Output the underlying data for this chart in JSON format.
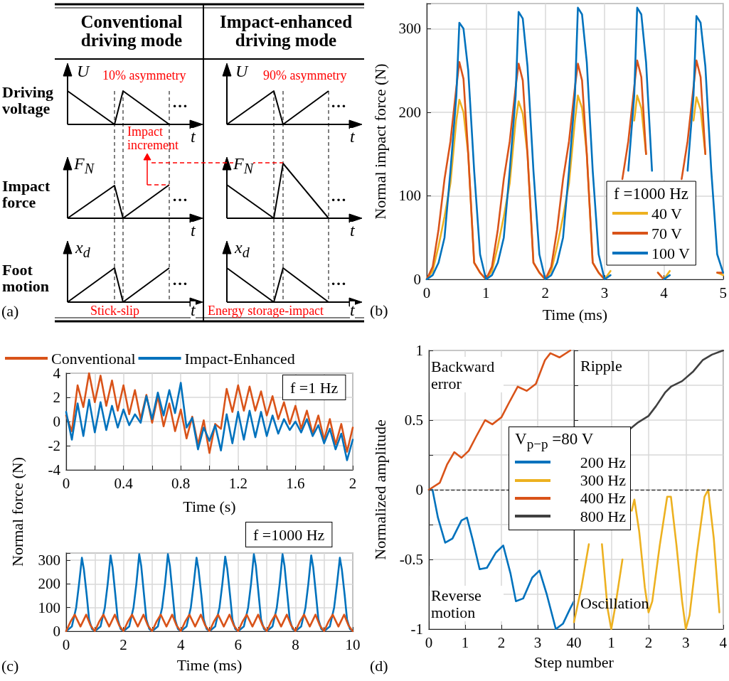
{
  "chart_data": [
    {
      "type": "other",
      "annotations": [
        "Conventional driving mode",
        "Impact-enhanced driving mode",
        "Driving voltage",
        "Impact force",
        "Foot motion",
        "U",
        "U",
        "F$_{N}$",
        "F$_{N}$",
        "x$_{d}$",
        "x$_{d}$",
        "t",
        "t",
        "t",
        "t",
        "t",
        "t",
        "10% asymmetry",
        "90% asymmetry",
        "Impact increment",
        "Stick-slip",
        "Energy storage-impact",
        "…",
        "…",
        "…",
        "…",
        "…",
        "…",
        "(a)"
      ]
    },
    {
      "type": "line",
      "xlabel": "Time (ms)",
      "ylabel": "Normal impact force (N)",
      "legend_title": "f =1000 Hz",
      "legend": "bottom right",
      "grid": true,
      "xlim": [
        0,
        5
      ],
      "xticks": [
        0,
        1,
        2,
        3,
        4,
        5
      ],
      "ylim": [
        0,
        330
      ],
      "yticks": [
        0,
        100,
        200,
        300
      ],
      "annotations": [
        "(b)"
      ],
      "x": [
        0,
        0.1,
        0.2,
        0.3,
        0.4,
        0.5,
        0.55,
        0.62,
        0.7,
        0.8,
        0.9,
        1,
        1.1,
        1.2,
        1.3,
        1.4,
        1.5,
        1.55,
        1.62,
        1.7,
        1.8,
        1.9,
        2,
        2.1,
        2.2,
        2.3,
        2.4,
        2.5,
        2.55,
        2.62,
        2.7,
        2.8,
        2.9,
        3,
        3.1,
        3.2,
        3.3,
        3.4,
        3.5,
        3.55,
        3.62,
        3.7,
        3.8,
        3.9,
        4,
        4.1,
        4.2,
        4.3,
        4.4,
        4.5,
        4.55,
        4.62,
        4.7,
        4.8,
        4.9,
        5
      ],
      "series": [
        {
          "name": "40 V",
          "color": "#edb120",
          "values": [
            0,
            10,
            40,
            75,
            115,
            190,
            215,
            200,
            150,
            20,
            8,
            0,
            10,
            40,
            75,
            115,
            190,
            213,
            198,
            150,
            20,
            8,
            0,
            10,
            40,
            75,
            115,
            190,
            220,
            205,
            150,
            20,
            8,
            0,
            10,
            null,
            null,
            null,
            190,
            220,
            205,
            150,
            null,
            8,
            0,
            10,
            null,
            null,
            null,
            190,
            218,
            203,
            150,
            null,
            8,
            5
          ]
        },
        {
          "name": "70 V",
          "color": "#d95319",
          "values": [
            0,
            15,
            60,
            120,
            165,
            230,
            260,
            240,
            150,
            20,
            8,
            0,
            15,
            60,
            120,
            165,
            230,
            258,
            238,
            150,
            20,
            8,
            0,
            15,
            60,
            120,
            165,
            230,
            258,
            238,
            150,
            20,
            8,
            0,
            null,
            null,
            120,
            165,
            230,
            262,
            242,
            150,
            null,
            8,
            0,
            null,
            null,
            120,
            165,
            230,
            262,
            242,
            150,
            null,
            8,
            8
          ]
        },
        {
          "name": "100 V",
          "color": "#0072bd",
          "values": [
            0,
            5,
            20,
            50,
            130,
            220,
            307,
            300,
            250,
            130,
            30,
            0,
            5,
            20,
            50,
            130,
            220,
            320,
            312,
            255,
            130,
            30,
            0,
            5,
            20,
            50,
            130,
            220,
            325,
            317,
            260,
            130,
            30,
            0,
            5,
            null,
            null,
            130,
            220,
            325,
            317,
            260,
            130,
            null,
            0,
            5,
            null,
            null,
            130,
            220,
            315,
            307,
            255,
            130,
            30,
            8
          ]
        }
      ]
    },
    {
      "type": "line",
      "xlabel": "Time (s)",
      "ylabel": "Normal force (N)",
      "legend": "top",
      "grid": true,
      "xlim": [
        0,
        2
      ],
      "xticks": [
        0,
        {
          "value": 0.2,
          "label": null
        },
        0.4,
        {
          "value": 0.6,
          "label": null
        },
        0.8,
        {
          "value": 1,
          "label": null
        },
        1.2,
        {
          "value": 1.4,
          "label": null
        },
        1.6,
        {
          "value": 1.8,
          "label": null
        },
        2
      ],
      "ylim": [
        -4,
        4
      ],
      "yticks": [
        -4,
        -2,
        0,
        2,
        4
      ],
      "annotations": [
        "f =1 Hz"
      ],
      "x": [
        0,
        0.04,
        0.08,
        0.12,
        0.16,
        0.2,
        0.24,
        0.28,
        0.32,
        0.36,
        0.4,
        0.44,
        0.48,
        0.52,
        0.56,
        0.6,
        0.64,
        0.68,
        0.72,
        0.76,
        0.8,
        0.84,
        0.88,
        0.92,
        0.96,
        1,
        1.04,
        1.08,
        1.12,
        1.16,
        1.2,
        1.24,
        1.28,
        1.32,
        1.36,
        1.4,
        1.44,
        1.48,
        1.52,
        1.56,
        1.6,
        1.64,
        1.68,
        1.72,
        1.76,
        1.8,
        1.84,
        1.88,
        1.92,
        1.96,
        2
      ],
      "series": [
        {
          "name": "Conventional",
          "color": "#d95319",
          "values": [
            0.5,
            -0.8,
            3.0,
            1.2,
            4.0,
            1.6,
            3.8,
            1.3,
            3.4,
            0.9,
            3.0,
            0.6,
            2.6,
            0.2,
            2.2,
            -0.1,
            2.1,
            -0.4,
            1.5,
            -0.8,
            1.0,
            -1.4,
            0.4,
            -1.9,
            0.1,
            -2.6,
            -0.2,
            -0.6,
            2.7,
            0.8,
            3.0,
            0.9,
            2.9,
            0.9,
            2.5,
            0.5,
            2.1,
            0.2,
            1.6,
            -0.2,
            1.3,
            -0.6,
            0.9,
            -1.0,
            0.5,
            -1.5,
            0.2,
            -1.9,
            -0.2,
            -2.5,
            -0.5
          ]
        },
        {
          "name": "Impact-Enhanced",
          "color": "#0072bd",
          "values": [
            0.8,
            -1.5,
            1.5,
            -1.2,
            1.8,
            -0.9,
            1.6,
            -0.7,
            1.3,
            -0.5,
            1.0,
            -0.3,
            0.6,
            -0.1,
            2.1,
            0.2,
            2.4,
            0.5,
            2.6,
            0.7,
            3.2,
            -0.5,
            0.3,
            -2.3,
            -0.5,
            -1.6,
            -0.3,
            -2.4,
            0.6,
            -1.8,
            0.8,
            -1.5,
            0.9,
            -1.3,
            0.8,
            -1.2,
            0.5,
            -1.0,
            0.2,
            -0.7,
            0.0,
            -0.9,
            0.2,
            -1.2,
            -0.3,
            -1.8,
            -0.6,
            -2.3,
            -1.0,
            -3.2,
            -1.5
          ]
        }
      ]
    },
    {
      "type": "line",
      "xlabel": "Time (ms)",
      "grid": true,
      "xlim": [
        0,
        10
      ],
      "xticks": [
        0,
        {
          "value": 1,
          "label": null
        },
        2,
        {
          "value": 3,
          "label": null
        },
        4,
        {
          "value": 5,
          "label": null
        },
        6,
        {
          "value": 7,
          "label": null
        },
        8,
        {
          "value": 9,
          "label": null
        },
        10
      ],
      "ylim": [
        0,
        330
      ],
      "yticks": [
        0,
        100,
        200,
        300
      ],
      "annotations": [
        "f =1000 Hz",
        "(c)"
      ],
      "series": [
        {
          "color": "#0072bd",
          "x": [
            0,
            0.2,
            0.35,
            0.45,
            0.55,
            0.62,
            0.72,
            0.8,
            0.9,
            1,
            1.2,
            1.35,
            1.45,
            1.55,
            1.62,
            1.72,
            1.8,
            1.9,
            2,
            2.2,
            2.35,
            2.45,
            2.55,
            2.62,
            2.72,
            2.8,
            2.9,
            3,
            3.2,
            3.35,
            3.45,
            3.55,
            3.62,
            3.72,
            3.8,
            3.9,
            4,
            4.2,
            4.35,
            4.45,
            4.55,
            4.62,
            4.72,
            4.8,
            4.9,
            5,
            5.2,
            5.35,
            5.45,
            5.55,
            5.62,
            5.72,
            5.8,
            5.9,
            6,
            6.2,
            6.35,
            6.45,
            6.55,
            6.62,
            6.72,
            6.8,
            6.9,
            7,
            7.2,
            7.35,
            7.45,
            7.55,
            7.62,
            7.72,
            7.8,
            7.9,
            8,
            8.2,
            8.35,
            8.45,
            8.55,
            8.62,
            8.72,
            8.8,
            8.9,
            9,
            9.2,
            9.35,
            9.45,
            9.55,
            9.62,
            9.72,
            9.8,
            9.9,
            10
          ],
          "values": [
            0,
            20,
            100,
            200,
            310,
            260,
            150,
            50,
            10,
            0,
            20,
            100,
            200,
            320,
            270,
            150,
            50,
            10,
            0,
            20,
            100,
            200,
            325,
            275,
            150,
            50,
            10,
            0,
            20,
            100,
            200,
            325,
            275,
            150,
            50,
            10,
            0,
            20,
            100,
            200,
            310,
            260,
            150,
            50,
            10,
            0,
            20,
            100,
            200,
            315,
            265,
            150,
            50,
            10,
            0,
            20,
            100,
            200,
            325,
            275,
            150,
            50,
            10,
            0,
            20,
            100,
            200,
            325,
            275,
            150,
            50,
            10,
            0,
            20,
            100,
            200,
            320,
            270,
            150,
            50,
            10,
            0,
            20,
            100,
            200,
            310,
            260,
            150,
            50,
            10,
            0
          ]
        },
        {
          "color": "#d95319",
          "x": [
            0,
            0.15,
            0.3,
            0.5,
            0.7,
            0.85,
            1,
            1.15,
            1.3,
            1.5,
            1.7,
            1.85,
            2,
            2.15,
            2.3,
            2.5,
            2.7,
            2.85,
            3,
            3.15,
            3.3,
            3.5,
            3.7,
            3.85,
            4,
            4.15,
            4.3,
            4.5,
            4.7,
            4.85,
            5,
            5.15,
            5.3,
            5.5,
            5.7,
            5.85,
            6,
            6.15,
            6.3,
            6.5,
            6.7,
            6.85,
            7,
            7.15,
            7.3,
            7.5,
            7.7,
            7.85,
            8,
            8.15,
            8.3,
            8.5,
            8.7,
            8.85,
            9,
            9.15,
            9.3,
            9.5,
            9.7,
            9.85,
            10
          ],
          "values": [
            0,
            40,
            70,
            20,
            70,
            25,
            0,
            40,
            70,
            20,
            70,
            25,
            0,
            40,
            70,
            20,
            70,
            25,
            0,
            40,
            70,
            20,
            70,
            25,
            0,
            40,
            70,
            20,
            70,
            25,
            0,
            40,
            70,
            20,
            70,
            25,
            0,
            40,
            70,
            20,
            70,
            25,
            0,
            40,
            70,
            20,
            70,
            25,
            0,
            40,
            70,
            20,
            70,
            25,
            0,
            40,
            70,
            20,
            70,
            25,
            0
          ]
        }
      ]
    },
    {
      "type": "line",
      "xlabel": "Step number",
      "ylabel": "Normalized amplitude",
      "grid": true,
      "xlim": [
        0,
        4
      ],
      "xticks": [
        0,
        1,
        2,
        3,
        4
      ],
      "ylim": [
        -1,
        1
      ],
      "yticks": [
        -1,
        {
          "value": -0.75,
          "label": null
        },
        -0.5,
        {
          "value": -0.25,
          "label": null
        },
        0,
        {
          "value": 0.25,
          "label": null
        },
        0.5,
        {
          "value": 0.75,
          "label": null
        },
        1
      ],
      "ref_lines": [
        {
          "axis": "y",
          "value": 0,
          "line_style": "dashed",
          "color": "#404040"
        }
      ],
      "annotations": [
        "Backward error",
        "Reverse motion",
        "(d)"
      ],
      "series": [
        {
          "name": "200 Hz",
          "color": "#0072bd",
          "x": [
            0,
            0.1,
            0.25,
            0.45,
            0.65,
            0.9,
            1.05,
            1.2,
            1.4,
            1.6,
            1.85,
            2.05,
            2.25,
            2.4,
            2.6,
            2.85,
            3.05,
            3.25,
            3.45,
            3.5,
            3.7,
            3.9,
            4
          ],
          "values": [
            0,
            0,
            -0.2,
            -0.38,
            -0.35,
            -0.22,
            -0.2,
            -0.35,
            -0.57,
            -0.56,
            -0.45,
            -0.4,
            -0.6,
            -0.8,
            -0.78,
            -0.63,
            -0.58,
            -0.75,
            -0.95,
            -1,
            -0.96,
            -0.85,
            -0.8
          ]
        },
        {
          "name": "400 Hz",
          "color": "#d95319",
          "x": [
            0,
            0.3,
            0.5,
            0.7,
            0.9,
            1.1,
            1.3,
            1.55,
            1.75,
            2,
            2.2,
            2.45,
            2.7,
            2.95,
            3.2,
            3.35,
            3.6,
            3.9
          ],
          "values": [
            0,
            0.05,
            0.18,
            0.27,
            0.23,
            0.28,
            0.38,
            0.5,
            0.47,
            0.52,
            0.62,
            0.74,
            0.71,
            0.76,
            0.93,
            0.98,
            0.95,
            1
          ]
        }
      ]
    },
    {
      "type": "line",
      "legend_title": "V$_{p−p}$ =80 V",
      "legend": "left",
      "grid": true,
      "tick_labels": "x",
      "xlim": [
        0,
        4
      ],
      "xticks": [
        0,
        1,
        2,
        3,
        4
      ],
      "ylim": [
        -1,
        1
      ],
      "yticks": [
        -1,
        {
          "value": -0.75,
          "label": null
        },
        -0.5,
        {
          "value": -0.25,
          "label": null
        },
        0,
        {
          "value": 0.25,
          "label": null
        },
        0.5,
        {
          "value": 0.75,
          "label": null
        },
        1
      ],
      "ref_lines": [
        {
          "axis": "y",
          "value": 0,
          "line_style": "dashed",
          "color": "#404040"
        }
      ],
      "annotations": [
        "Ripple",
        "Oscillation"
      ],
      "series": [
        {
          "name": "300 Hz",
          "color": "#edb120",
          "x": [
            0,
            0.2,
            0.4,
            0.55,
            0.75,
            0.9,
            1,
            1.1,
            1.3,
            1.45,
            1.55,
            1.62,
            1.75,
            1.9,
            2,
            2.1,
            2.3,
            2.5,
            2.6,
            2.75,
            2.9,
            3,
            3.1,
            3.3,
            3.5,
            3.6,
            3.75,
            3.9
          ],
          "values": [
            -0.95,
            -0.7,
            -0.39,
            null,
            -0.39,
            -0.85,
            -1,
            -0.85,
            -0.5,
            null,
            -0.15,
            -0.07,
            -0.3,
            -0.7,
            -0.88,
            -0.8,
            -0.4,
            -0.05,
            -0.05,
            -0.4,
            -0.8,
            -1,
            -0.9,
            -0.45,
            -0.05,
            0,
            -0.35,
            -0.88
          ]
        },
        {
          "name": "800 Hz",
          "color": "#404040",
          "x": [
            1.52,
            1.7,
            2,
            2.2,
            2.45,
            2.6,
            2.9,
            3.2,
            3.45,
            3.7,
            4
          ],
          "values": [
            0.44,
            0.48,
            0.53,
            0.6,
            0.7,
            0.74,
            0.78,
            0.85,
            0.93,
            0.97,
            1
          ]
        }
      ]
    }
  ]
}
